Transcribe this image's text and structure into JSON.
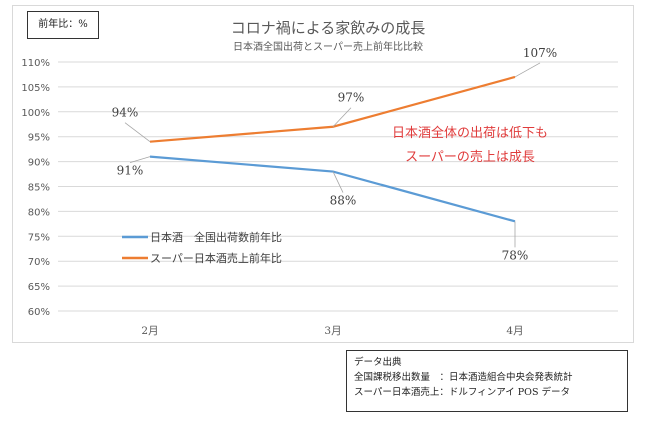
{
  "unit_label": "前年比：%",
  "source": {
    "heading": "データ出典",
    "lines": [
      "全国課税移出数量　：日本酒造組合中央会発表統計",
      "スーパー日本酒売上：ドルフィンアイ POS データ"
    ]
  },
  "chart_data": {
    "type": "line",
    "title": "コロナ禍による家飲みの成長",
    "subtitle": "日本酒全国出荷とスーパー売上前年比比較",
    "categories": [
      "2月",
      "3月",
      "4月"
    ],
    "ylim": [
      60,
      110
    ],
    "yticks": [
      "60%",
      "65%",
      "70%",
      "75%",
      "80%",
      "85%",
      "90%",
      "95%",
      "100%",
      "105%",
      "110%"
    ],
    "grid": true,
    "legend_position": "left-middle",
    "series": [
      {
        "name": "日本酒　全国出荷数前年比",
        "values": [
          91,
          88,
          78
        ],
        "labels": [
          "91%",
          "88%",
          "78%"
        ],
        "color": "#5b9bd5"
      },
      {
        "name": "スーパー日本酒売上前年比",
        "values": [
          94,
          97,
          107
        ],
        "labels": [
          "94%",
          "97%",
          "107%"
        ],
        "color": "#ed7d31"
      }
    ],
    "annotation": [
      "日本酒全体の出荷は低下も",
      "スーパーの売上は成長"
    ],
    "annotation_color": "#e03c3c"
  }
}
